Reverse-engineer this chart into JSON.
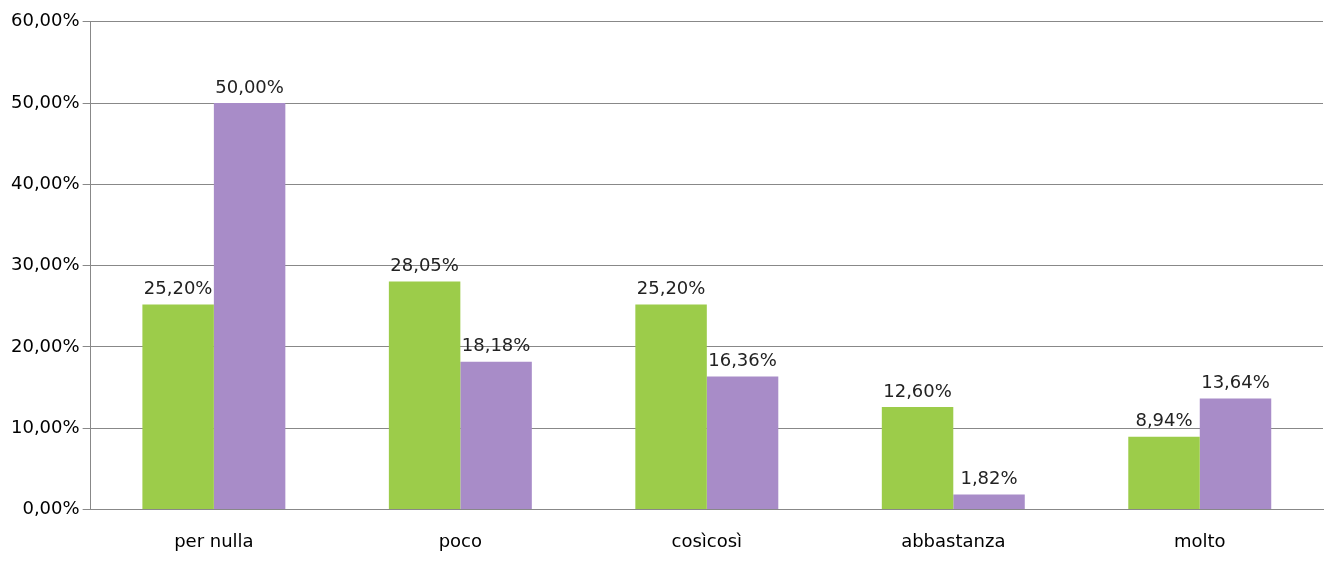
{
  "chart_data": {
    "type": "bar",
    "categories": [
      "per nulla",
      "poco",
      "cosìcosì",
      "abbastanza",
      "molto"
    ],
    "series": [
      {
        "color": "#9ccc4a",
        "values": [
          25.2,
          28.05,
          25.2,
          12.6,
          8.94
        ],
        "value_labels": [
          "25,20%",
          "28,05%",
          "25,20%",
          "12,60%",
          "8,94%"
        ]
      },
      {
        "color": "#a88cc8",
        "values": [
          50,
          18.18,
          16.36,
          1.82,
          13.64
        ],
        "value_labels": [
          "50,00%",
          "18,18%",
          "16,36%",
          "1,82%",
          "13,64%"
        ]
      }
    ],
    "ylim": [
      0,
      60
    ],
    "yticks": [
      {
        "value": 0,
        "label": "0,00%"
      },
      {
        "value": 10,
        "label": "10,00%"
      },
      {
        "value": 20,
        "label": "20,00%"
      },
      {
        "value": 30,
        "label": "30,00%"
      },
      {
        "value": 40,
        "label": "40,00%"
      },
      {
        "value": 50,
        "label": "50,00%"
      },
      {
        "value": 60,
        "label": "60,00%"
      }
    ],
    "grid": "y",
    "legend": false
  }
}
